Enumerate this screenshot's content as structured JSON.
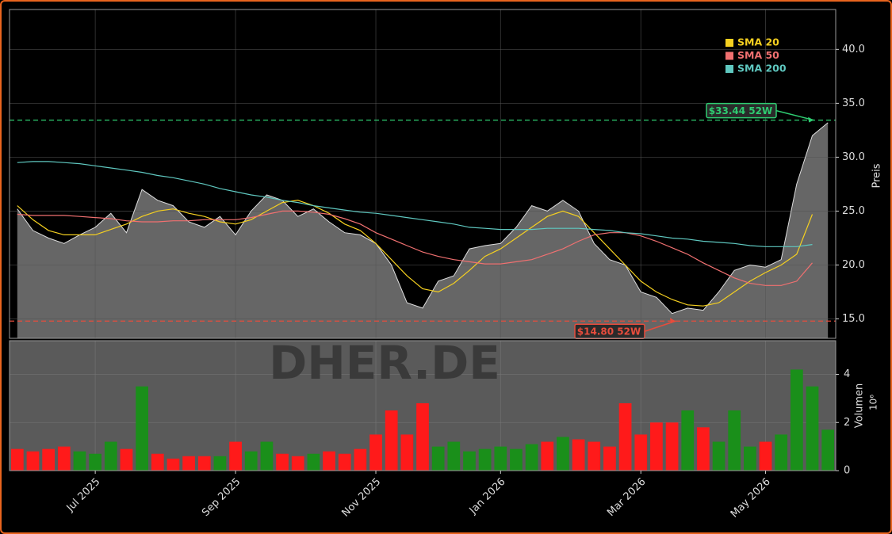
{
  "chart_data": {
    "type": "line",
    "watermark": "DHER.DE",
    "ylabel": "Preis",
    "ylim": [
      13.2,
      43.7
    ],
    "yticks": [
      {
        "value": 15,
        "label": "15.0"
      },
      {
        "value": 20,
        "label": "20.0"
      },
      {
        "value": 25,
        "label": "25.0"
      },
      {
        "value": 30,
        "label": "30.0"
      },
      {
        "value": 35,
        "label": "35.0"
      },
      {
        "value": 40,
        "label": "40.0"
      }
    ],
    "grid": true,
    "legend": "upper right",
    "categories": [
      null,
      null,
      null,
      null,
      null,
      "Jul 2025",
      null,
      null,
      null,
      null,
      null,
      null,
      null,
      null,
      "Sep 2025",
      null,
      null,
      null,
      null,
      null,
      null,
      null,
      null,
      "Nov 2025",
      null,
      null,
      null,
      null,
      null,
      null,
      null,
      "Jan 2026",
      null,
      null,
      null,
      null,
      null,
      null,
      null,
      null,
      "Mar 2026",
      null,
      null,
      null,
      null,
      null,
      null,
      null,
      "May 2026",
      null,
      null,
      null,
      null
    ],
    "price": {
      "color": "#dddddd",
      "fill": "#666666",
      "values": [
        25.2,
        23.2,
        22.5,
        22.0,
        22.8,
        23.5,
        24.8,
        23.0,
        27.0,
        26.0,
        25.5,
        24.0,
        23.5,
        24.5,
        22.8,
        25.0,
        26.5,
        26.0,
        24.5,
        25.2,
        24.0,
        23.0,
        22.8,
        22.0,
        20.0,
        16.5,
        16.0,
        18.5,
        19.0,
        21.5,
        21.8,
        22.0,
        23.5,
        25.5,
        25.0,
        26.0,
        25.0,
        22.0,
        20.5,
        20.0,
        17.5,
        17.0,
        15.5,
        16.0,
        15.8,
        17.5,
        19.5,
        20.0,
        19.8,
        20.5,
        27.5,
        32.0,
        33.2
      ]
    },
    "series": [
      {
        "name": "SMA 20",
        "color": "#f5d020",
        "values": [
          25.5,
          24.2,
          23.2,
          22.8,
          22.8,
          22.8,
          23.3,
          23.8,
          24.5,
          25.0,
          25.2,
          24.8,
          24.5,
          24.0,
          23.8,
          24.2,
          25.0,
          25.8,
          26.0,
          25.5,
          24.8,
          23.8,
          23.2,
          22.0,
          20.5,
          19.0,
          17.8,
          17.5,
          18.3,
          19.5,
          20.8,
          21.5,
          22.5,
          23.5,
          24.5,
          25.0,
          24.5,
          23.0,
          21.5,
          20.0,
          18.5,
          17.5,
          16.8,
          16.3,
          16.2,
          16.5,
          17.5,
          18.5,
          19.3,
          20.0,
          21.0,
          24.7,
          null
        ]
      },
      {
        "name": "SMA 50",
        "color": "#f07070",
        "values": [
          24.7,
          24.6,
          24.6,
          24.6,
          24.5,
          24.4,
          24.3,
          24.1,
          24.0,
          24.0,
          24.1,
          24.1,
          24.2,
          24.2,
          24.2,
          24.4,
          24.7,
          25.0,
          25.0,
          24.9,
          24.7,
          24.3,
          23.8,
          23.0,
          22.4,
          21.8,
          21.2,
          20.8,
          20.5,
          20.3,
          20.1,
          20.1,
          20.3,
          20.5,
          21.0,
          21.5,
          22.2,
          22.8,
          23.0,
          23.0,
          22.7,
          22.2,
          21.6,
          21.0,
          20.2,
          19.5,
          18.8,
          18.3,
          18.1,
          18.1,
          18.5,
          20.2,
          null
        ]
      },
      {
        "name": "SMA 200",
        "color": "#5fc8c0",
        "values": [
          29.5,
          29.6,
          29.6,
          29.5,
          29.4,
          29.2,
          29.0,
          28.8,
          28.6,
          28.3,
          28.1,
          27.8,
          27.5,
          27.1,
          26.8,
          26.5,
          26.3,
          26.0,
          25.8,
          25.5,
          25.3,
          25.1,
          24.9,
          24.8,
          24.6,
          24.4,
          24.2,
          24.0,
          23.8,
          23.5,
          23.4,
          23.3,
          23.3,
          23.3,
          23.4,
          23.4,
          23.4,
          23.3,
          23.2,
          23.0,
          22.9,
          22.7,
          22.5,
          22.4,
          22.2,
          22.1,
          22.0,
          21.8,
          21.7,
          21.7,
          21.7,
          21.9,
          null
        ]
      }
    ],
    "annotations": [
      {
        "text": "$33.44 52W",
        "value": 33.44,
        "color": "#2ecc71"
      },
      {
        "text": "$14.80 52W",
        "value": 14.8,
        "color": "#e74c3c"
      }
    ],
    "volume": {
      "ylabel": "Volumen",
      "scale_label": "10⁶",
      "ylim": [
        0,
        5.4
      ],
      "yticks": [
        0,
        2,
        4
      ],
      "up_color": "#1a8f1a",
      "down_color": "#ff1a1a",
      "values": [
        0.9,
        0.8,
        0.9,
        1.0,
        0.8,
        0.7,
        1.2,
        0.9,
        3.5,
        0.7,
        0.5,
        0.6,
        0.6,
        0.6,
        1.2,
        0.8,
        1.2,
        0.7,
        0.6,
        0.7,
        0.8,
        0.7,
        0.9,
        1.5,
        2.5,
        1.5,
        2.8,
        1.0,
        1.2,
        0.8,
        0.9,
        1.0,
        0.9,
        1.1,
        1.2,
        1.4,
        1.3,
        1.2,
        1.0,
        2.8,
        1.5,
        2.0,
        2.0,
        2.5,
        1.8,
        1.2,
        2.5,
        1.0,
        1.2,
        1.5,
        4.2,
        3.5,
        1.7
      ]
    }
  }
}
